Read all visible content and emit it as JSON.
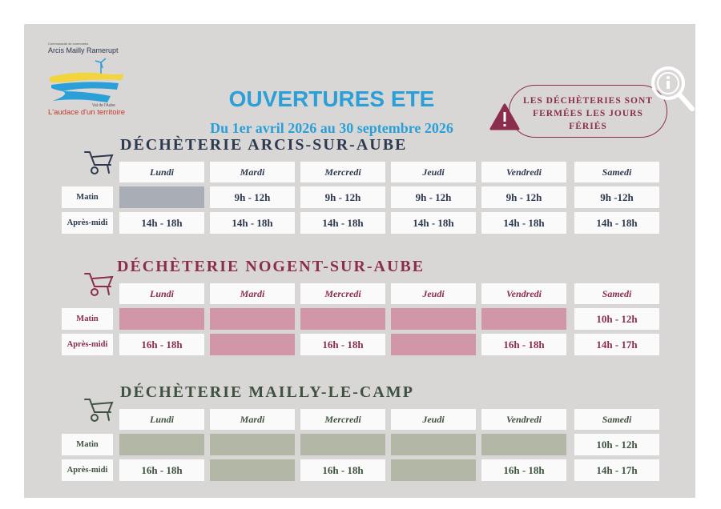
{
  "logo": {
    "small": "Communauté de communes",
    "name": "Arcis Mailly Ramerupt",
    "tagline_top": "Val de l'Aube",
    "tagline": "L'audace d'un territoire"
  },
  "header": {
    "title": "OUVERTURES ETE",
    "subtitle": "Du 1er avril 2026 au 30 septembre 2026",
    "notice": "LES DÉCHÈTERIES SONT FERMÉES LES JOURS FÉRIÉS"
  },
  "sites": [
    {
      "name": "DÉCHÈTERIE ARCIS-SUR-AUBE",
      "color": "#2e3a4f",
      "closed_color": "#a9adb6",
      "days": [
        "Lundi",
        "Mardi",
        "Mercredi",
        "Jeudi",
        "Vendredi",
        "Samedi"
      ],
      "rows": [
        {
          "label": "Matin",
          "cells": [
            null,
            "9h - 12h",
            "9h - 12h",
            "9h - 12h",
            "9h - 12h",
            "9h -12h"
          ]
        },
        {
          "label": "Après-midi",
          "cells": [
            "14h - 18h",
            "14h - 18h",
            "14h - 18h",
            "14h - 18h",
            "14h - 18h",
            "14h - 18h"
          ]
        }
      ]
    },
    {
      "name": "DÉCHÈTERIE NOGENT-SUR-AUBE",
      "color": "#8b2d4d",
      "closed_color": "#d196a8",
      "days": [
        "Lundi",
        "Mardi",
        "Mercredi",
        "Jeudi",
        "Vendredi",
        "Samedi"
      ],
      "rows": [
        {
          "label": "Matin",
          "cells": [
            null,
            null,
            null,
            null,
            null,
            "10h - 12h"
          ]
        },
        {
          "label": "Après-midi",
          "cells": [
            "16h - 18h",
            null,
            "16h - 18h",
            null,
            "16h - 18h",
            "14h - 17h"
          ]
        }
      ]
    },
    {
      "name": "DÉCHÈTERIE MAILLY-LE-CAMP",
      "color": "#3f5240",
      "closed_color": "#b3b8a6",
      "days": [
        "Lundi",
        "Mardi",
        "Mercredi",
        "Jeudi",
        "Vendredi",
        "Samedi"
      ],
      "rows": [
        {
          "label": "Matin",
          "cells": [
            null,
            null,
            null,
            null,
            null,
            "10h - 12h"
          ]
        },
        {
          "label": "Après-midi",
          "cells": [
            "16h - 18h",
            null,
            "16h - 18h",
            null,
            "16h - 18h",
            "14h - 17h"
          ]
        }
      ]
    }
  ]
}
